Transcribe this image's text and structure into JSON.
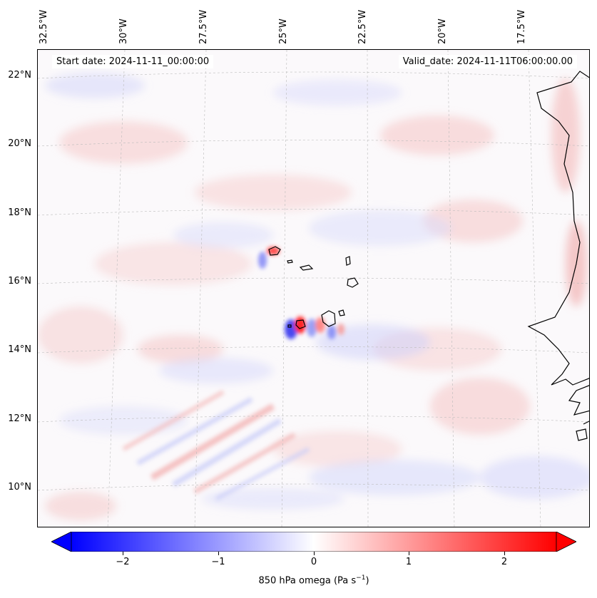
{
  "header": {
    "start_date": "Start date: 2024-11-11_00:00:00",
    "valid_date": "Valid_date: 2024-11-11T06:00:00.00"
  },
  "axes": {
    "longitude_labels": [
      "32.5°W",
      "30°W",
      "27.5°W",
      "25°W",
      "22.5°W",
      "20°W",
      "17.5°W"
    ],
    "latitude_labels": [
      "22°N",
      "20°N",
      "18°N",
      "16°N",
      "14°N",
      "12°N",
      "10°N"
    ]
  },
  "colorbar": {
    "ticks": [
      "−2",
      "−1",
      "0",
      "1",
      "2"
    ],
    "tick_values": [
      -2,
      -1,
      0,
      1,
      2
    ],
    "range": [
      -2.5,
      2.5
    ],
    "label_prefix": "850 hPa omega (Pa s",
    "label_exponent": "−1",
    "label_suffix": ")",
    "min_color": "#0000ff",
    "mid_color": "#ffffff",
    "max_color": "#ff0000",
    "extend": "both"
  },
  "map": {
    "variable": "850 hPa omega",
    "units": "Pa s−1",
    "features": [
      "Cape Verde islands",
      "West African coastline (Senegal, Gambia, Guinea-Bissau)"
    ],
    "background_color": "#fbf9fb",
    "coastline_color": "#000000",
    "gridline_color": "#bbbbbb"
  }
}
